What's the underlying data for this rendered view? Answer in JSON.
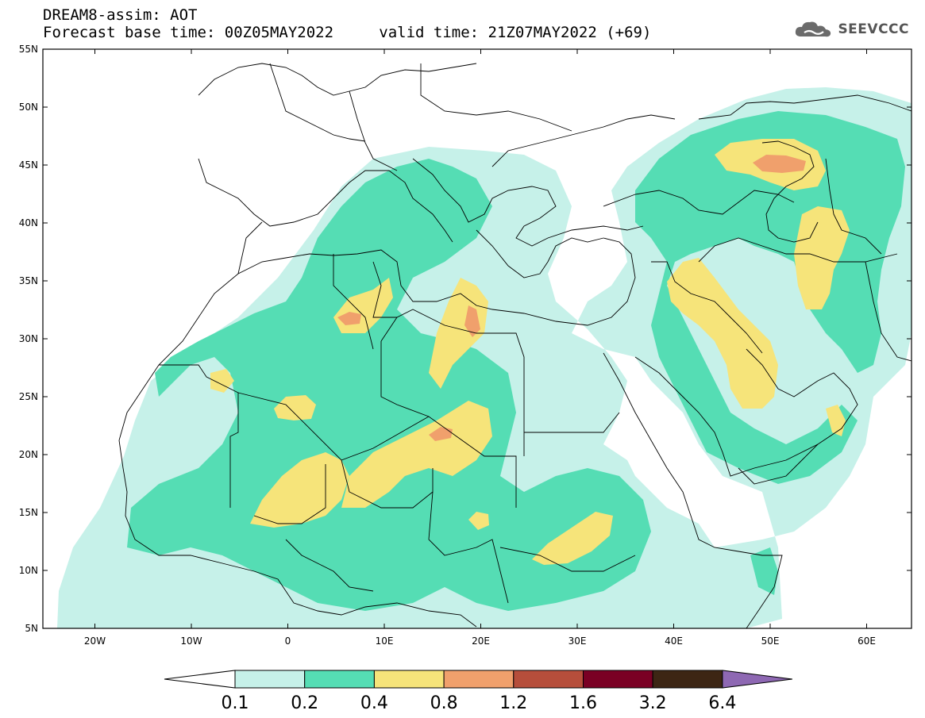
{
  "header": {
    "line1": "DREAM8-assim: AOT",
    "base_time": "Forecast base time: 00Z05MAY2022",
    "valid_time": "valid time: 21Z07MAY2022 (+69)"
  },
  "logo": {
    "text": "SEEVCCC",
    "icon": "cloud-icon"
  },
  "axes": {
    "lon_ticks": [
      "20W",
      "10W",
      "0",
      "10E",
      "20E",
      "30E",
      "40E",
      "50E",
      "60E"
    ],
    "lat_ticks": [
      "55N",
      "50N",
      "45N",
      "40N",
      "35N",
      "30N",
      "25N",
      "20N",
      "15N",
      "10N",
      "5N"
    ]
  },
  "colorbar": {
    "labels": [
      "0.1",
      "0.2",
      "0.4",
      "0.8",
      "1.2",
      "1.6",
      "3.2",
      "6.4"
    ],
    "colors": [
      "#ffffff",
      "#c6f1e9",
      "#55ddb4",
      "#f6e47a",
      "#f0a06c",
      "#b64e3b",
      "#7a0024",
      "#3d2614",
      "#8e68b3"
    ]
  },
  "map": {
    "region": "North Africa, Middle East and Mediterranean",
    "lon_range": [
      -25,
      65
    ],
    "lat_range": [
      5,
      55
    ],
    "variable": "AOT",
    "level_colors": {
      "l1": "#c6f1e9",
      "l2": "#55ddb4",
      "l3": "#f6e47a",
      "l4": "#f0a06c"
    }
  }
}
